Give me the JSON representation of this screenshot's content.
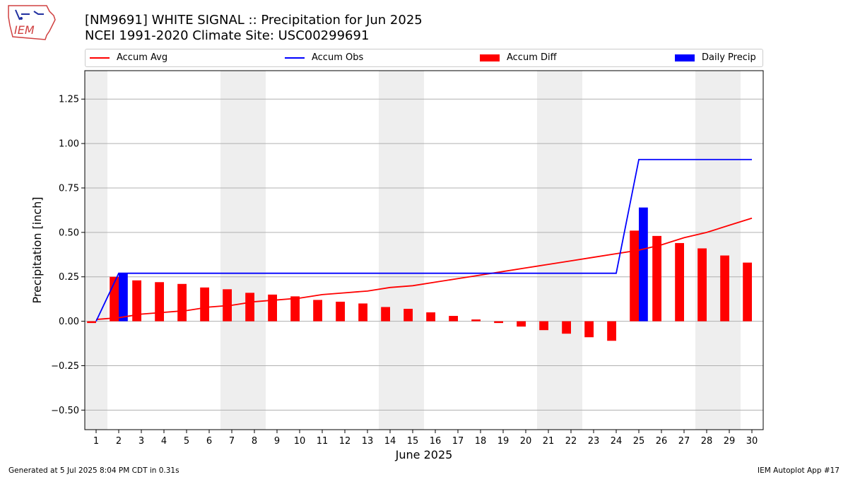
{
  "title_line1": "[NM9691] WHITE SIGNAL :: Precipitation for Jun 2025",
  "title_line2": "NCEI 1991-2020 Climate Site: USC00299691",
  "logo_text": "IEM",
  "legend": [
    {
      "label": "Accum Avg",
      "color": "#ff0000",
      "kind": "line"
    },
    {
      "label": "Accum Obs",
      "color": "#0000ff",
      "kind": "line"
    },
    {
      "label": "Accum Diff",
      "color": "#ff0000",
      "kind": "bar"
    },
    {
      "label": "Daily Precip",
      "color": "#0000ff",
      "kind": "bar"
    }
  ],
  "footer_left": "Generated at 5 Jul 2025 8:04 PM CDT in 0.31s",
  "footer_right": "IEM Autoplot App #17",
  "chart_data": {
    "type": "bar",
    "xlabel": "June 2025",
    "ylabel": "Precipitation [inch]",
    "xlim": [
      0.5,
      30.5
    ],
    "ylim": [
      -0.61,
      1.41
    ],
    "yticks": [
      -0.5,
      -0.25,
      0.0,
      0.25,
      0.5,
      0.75,
      1.0,
      1.25
    ],
    "ytick_labels": [
      "−0.50",
      "−0.25",
      "0.00",
      "0.25",
      "0.50",
      "0.75",
      "1.00",
      "1.25"
    ],
    "xticks": [
      1,
      2,
      3,
      4,
      5,
      6,
      7,
      8,
      9,
      10,
      11,
      12,
      13,
      14,
      15,
      16,
      17,
      18,
      19,
      20,
      21,
      22,
      23,
      24,
      25,
      26,
      27,
      28,
      29,
      30
    ],
    "weekend_days": [
      1,
      7,
      8,
      14,
      15,
      21,
      22,
      28,
      29
    ],
    "grid": "horizontal",
    "colors": {
      "avg": "#ff0000",
      "obs": "#0000ff",
      "diff": "#ff0000",
      "daily": "#0000ff",
      "weekend": "#eeeeee",
      "grid": "#b0b0b0"
    },
    "days": [
      1,
      2,
      3,
      4,
      5,
      6,
      7,
      8,
      9,
      10,
      11,
      12,
      13,
      14,
      15,
      16,
      17,
      18,
      19,
      20,
      21,
      22,
      23,
      24,
      25,
      26,
      27,
      28,
      29,
      30
    ],
    "series": [
      {
        "name": "Accum Avg",
        "type": "line",
        "values": [
          0.01,
          0.02,
          0.04,
          0.05,
          0.06,
          0.08,
          0.09,
          0.11,
          0.12,
          0.13,
          0.15,
          0.16,
          0.17,
          0.19,
          0.2,
          0.22,
          0.24,
          0.26,
          0.28,
          0.3,
          0.32,
          0.34,
          0.36,
          0.38,
          0.4,
          0.43,
          0.47,
          0.5,
          0.54,
          0.58
        ]
      },
      {
        "name": "Accum Obs",
        "type": "line",
        "values": [
          0.0,
          0.27,
          0.27,
          0.27,
          0.27,
          0.27,
          0.27,
          0.27,
          0.27,
          0.27,
          0.27,
          0.27,
          0.27,
          0.27,
          0.27,
          0.27,
          0.27,
          0.27,
          0.27,
          0.27,
          0.27,
          0.27,
          0.27,
          0.27,
          0.91,
          0.91,
          0.91,
          0.91,
          0.91,
          0.91
        ]
      },
      {
        "name": "Accum Diff",
        "type": "bar",
        "values": [
          -0.01,
          0.25,
          0.23,
          0.22,
          0.21,
          0.19,
          0.18,
          0.16,
          0.15,
          0.14,
          0.12,
          0.11,
          0.1,
          0.08,
          0.07,
          0.05,
          0.03,
          0.01,
          -0.01,
          -0.03,
          -0.05,
          -0.07,
          -0.09,
          -0.11,
          0.51,
          0.48,
          0.44,
          0.41,
          0.37,
          0.33
        ]
      },
      {
        "name": "Daily Precip",
        "type": "bar",
        "values": [
          0,
          0.27,
          0,
          0,
          0,
          0,
          0,
          0,
          0,
          0,
          0,
          0,
          0,
          0,
          0,
          0,
          0,
          0,
          0,
          0,
          0,
          0,
          0,
          0,
          0.64,
          0,
          0,
          0,
          0,
          0
        ]
      }
    ]
  }
}
